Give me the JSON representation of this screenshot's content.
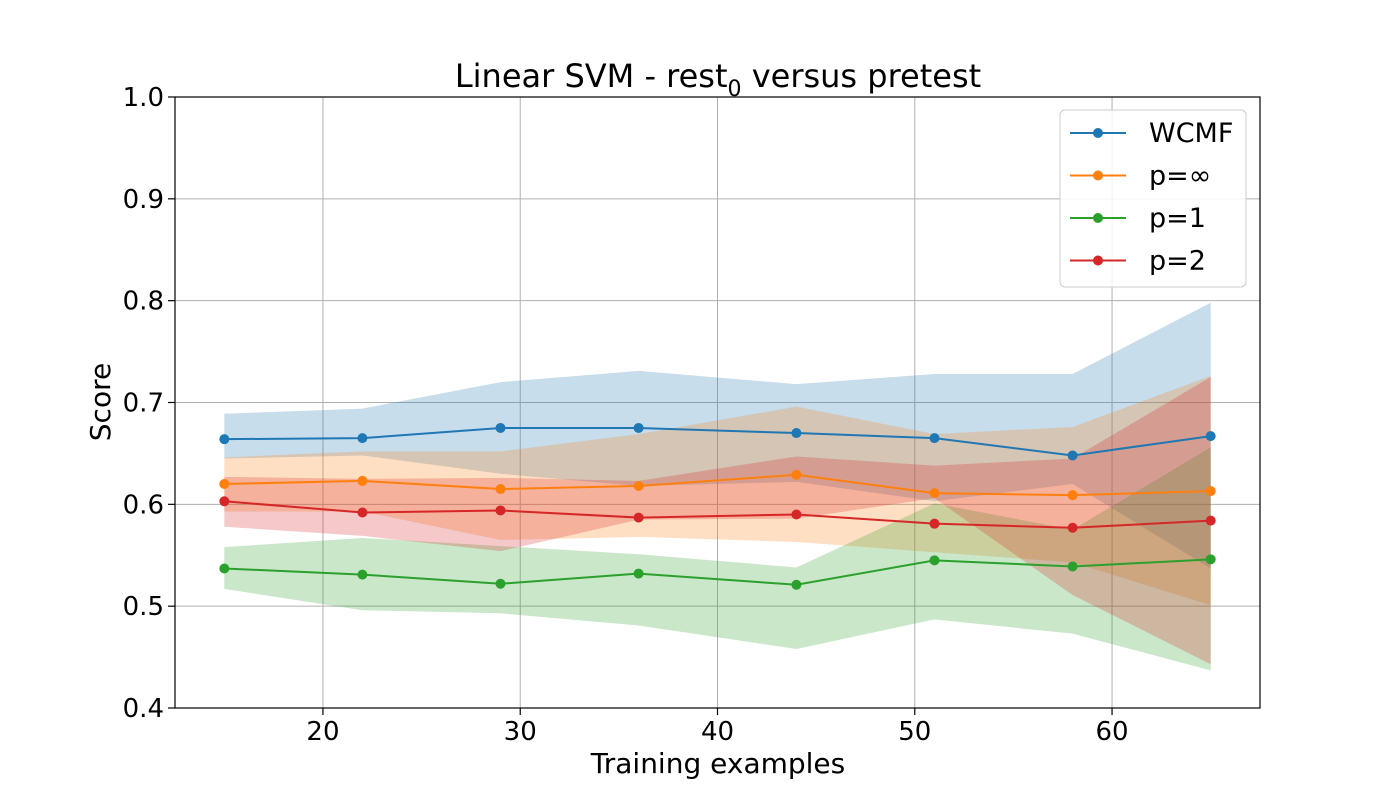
{
  "chart_data": {
    "type": "line",
    "title": "Linear SVM - rest",
    "title_subscript": "0",
    "title_suffix": " versus pretest",
    "xlabel": "Training examples",
    "ylabel": "Score",
    "xlim": [
      12.5,
      67.5
    ],
    "ylim": [
      0.4,
      1.0
    ],
    "xticks": [
      20,
      30,
      40,
      50,
      60
    ],
    "yticks": [
      0.4,
      0.5,
      0.6,
      0.7,
      0.8,
      0.9,
      1.0
    ],
    "xtick_labels": [
      "20",
      "30",
      "40",
      "50",
      "60"
    ],
    "ytick_labels": [
      "0.4",
      "0.5",
      "0.6",
      "0.7",
      "0.8",
      "0.9",
      "1.0"
    ],
    "grid": true,
    "legend_position": "top-right",
    "x": [
      15,
      22,
      29,
      36,
      44,
      51,
      58,
      65
    ],
    "series": [
      {
        "name": "WCMF",
        "color": "#1f77b4",
        "values": [
          0.664,
          0.665,
          0.675,
          0.675,
          0.67,
          0.665,
          0.648,
          0.667
        ],
        "lower": [
          0.645,
          0.648,
          0.63,
          0.618,
          0.622,
          0.603,
          0.62,
          0.537
        ],
        "upper": [
          0.689,
          0.694,
          0.72,
          0.731,
          0.718,
          0.728,
          0.728,
          0.798
        ]
      },
      {
        "name": "p=∞",
        "color": "#ff7f0e",
        "values": [
          0.62,
          0.623,
          0.615,
          0.618,
          0.629,
          0.611,
          0.609,
          0.613
        ],
        "lower": [
          0.593,
          0.593,
          0.565,
          0.568,
          0.563,
          0.553,
          0.543,
          0.501
        ],
        "upper": [
          0.646,
          0.652,
          0.652,
          0.669,
          0.696,
          0.669,
          0.676,
          0.726
        ]
      },
      {
        "name": "p=1",
        "color": "#2ca02c",
        "values": [
          0.537,
          0.531,
          0.522,
          0.532,
          0.521,
          0.545,
          0.539,
          0.546
        ],
        "lower": [
          0.517,
          0.496,
          0.493,
          0.481,
          0.458,
          0.487,
          0.473,
          0.437
        ],
        "upper": [
          0.558,
          0.567,
          0.559,
          0.551,
          0.538,
          0.601,
          0.575,
          0.656
        ]
      },
      {
        "name": "p=2",
        "color": "#d62728",
        "values": [
          0.603,
          0.592,
          0.594,
          0.587,
          0.59,
          0.581,
          0.577,
          0.584
        ],
        "lower": [
          0.578,
          0.569,
          0.554,
          0.585,
          0.586,
          0.606,
          0.511,
          0.443
        ],
        "upper": [
          0.627,
          0.625,
          0.626,
          0.623,
          0.647,
          0.638,
          0.645,
          0.725
        ]
      }
    ]
  }
}
